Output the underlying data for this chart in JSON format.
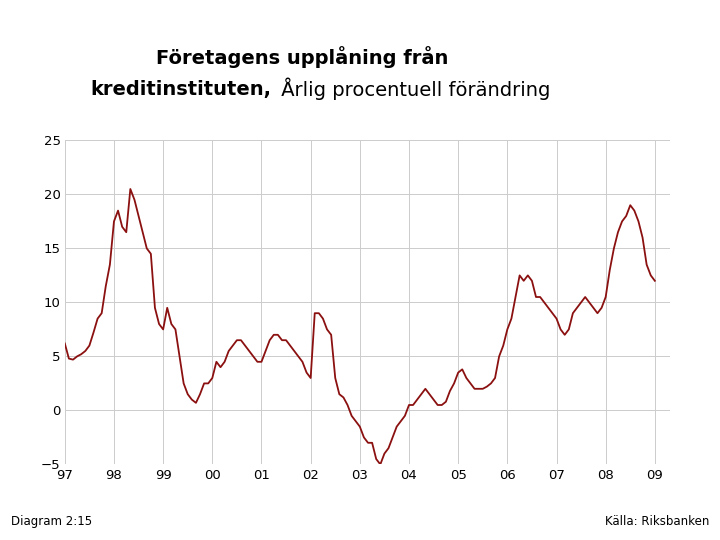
{
  "title_line1_bold": "Företagens upplåning från",
  "title_line2_bold": "kreditinstituten,",
  "title_line2_normal": " Årlig procentuell förändring",
  "diagram_label": "Diagram 2:15",
  "source_label": "Källa: Riksbanken",
  "line_color": "#8B1010",
  "background_color": "#FFFFFF",
  "grid_color": "#CCCCCC",
  "footer_bar_color": "#1A4F8A",
  "ylim": [
    -5,
    25
  ],
  "yticks": [
    -5,
    0,
    5,
    10,
    15,
    20,
    25
  ],
  "xtick_labels": [
    "97",
    "98",
    "99",
    "00",
    "01",
    "02",
    "03",
    "04",
    "05",
    "06",
    "07",
    "08",
    "09"
  ],
  "x_values": [
    1997.0,
    1997.083,
    1997.167,
    1997.25,
    1997.333,
    1997.417,
    1997.5,
    1997.583,
    1997.667,
    1997.75,
    1997.833,
    1997.917,
    1998.0,
    1998.083,
    1998.167,
    1998.25,
    1998.333,
    1998.417,
    1998.5,
    1998.583,
    1998.667,
    1998.75,
    1998.833,
    1998.917,
    1999.0,
    1999.083,
    1999.167,
    1999.25,
    1999.333,
    1999.417,
    1999.5,
    1999.583,
    1999.667,
    1999.75,
    1999.833,
    1999.917,
    2000.0,
    2000.083,
    2000.167,
    2000.25,
    2000.333,
    2000.417,
    2000.5,
    2000.583,
    2000.667,
    2000.75,
    2000.833,
    2000.917,
    2001.0,
    2001.083,
    2001.167,
    2001.25,
    2001.333,
    2001.417,
    2001.5,
    2001.583,
    2001.667,
    2001.75,
    2001.833,
    2001.917,
    2002.0,
    2002.083,
    2002.167,
    2002.25,
    2002.333,
    2002.417,
    2002.5,
    2002.583,
    2002.667,
    2002.75,
    2002.833,
    2002.917,
    2003.0,
    2003.083,
    2003.167,
    2003.25,
    2003.333,
    2003.417,
    2003.5,
    2003.583,
    2003.667,
    2003.75,
    2003.833,
    2003.917,
    2004.0,
    2004.083,
    2004.167,
    2004.25,
    2004.333,
    2004.417,
    2004.5,
    2004.583,
    2004.667,
    2004.75,
    2004.833,
    2004.917,
    2005.0,
    2005.083,
    2005.167,
    2005.25,
    2005.333,
    2005.417,
    2005.5,
    2005.583,
    2005.667,
    2005.75,
    2005.833,
    2005.917,
    2006.0,
    2006.083,
    2006.167,
    2006.25,
    2006.333,
    2006.417,
    2006.5,
    2006.583,
    2006.667,
    2006.75,
    2006.833,
    2006.917,
    2007.0,
    2007.083,
    2007.167,
    2007.25,
    2007.333,
    2007.417,
    2007.5,
    2007.583,
    2007.667,
    2007.75,
    2007.833,
    2007.917,
    2008.0,
    2008.083,
    2008.167,
    2008.25,
    2008.333,
    2008.417,
    2008.5,
    2008.583,
    2008.667,
    2008.75,
    2008.833,
    2008.917,
    2009.0
  ],
  "y_values": [
    6.2,
    4.8,
    4.7,
    5.0,
    5.2,
    5.5,
    6.0,
    7.2,
    8.5,
    9.0,
    11.5,
    13.5,
    17.5,
    18.5,
    17.0,
    16.5,
    20.5,
    19.5,
    18.0,
    16.5,
    15.0,
    14.5,
    9.5,
    8.0,
    7.5,
    9.5,
    8.0,
    7.5,
    5.0,
    2.5,
    1.5,
    1.0,
    0.7,
    1.5,
    2.5,
    2.5,
    3.0,
    4.5,
    4.0,
    4.5,
    5.5,
    6.0,
    6.5,
    6.5,
    6.0,
    5.5,
    5.0,
    4.5,
    4.5,
    5.5,
    6.5,
    7.0,
    7.0,
    6.5,
    6.5,
    6.0,
    5.5,
    5.0,
    4.5,
    3.5,
    3.0,
    9.0,
    9.0,
    8.5,
    7.5,
    7.0,
    3.0,
    1.5,
    1.2,
    0.5,
    -0.5,
    -1.0,
    -1.5,
    -2.5,
    -3.0,
    -3.0,
    -4.5,
    -5.0,
    -4.0,
    -3.5,
    -2.5,
    -1.5,
    -1.0,
    -0.5,
    0.5,
    0.5,
    1.0,
    1.5,
    2.0,
    1.5,
    1.0,
    0.5,
    0.5,
    0.8,
    1.8,
    2.5,
    3.5,
    3.8,
    3.0,
    2.5,
    2.0,
    2.0,
    2.0,
    2.2,
    2.5,
    3.0,
    5.0,
    6.0,
    7.5,
    8.5,
    10.5,
    12.5,
    12.0,
    12.5,
    12.0,
    10.5,
    10.5,
    10.0,
    9.5,
    9.0,
    8.5,
    7.5,
    7.0,
    7.5,
    9.0,
    9.5,
    10.0,
    10.5,
    10.0,
    9.5,
    9.0,
    9.5,
    10.5,
    13.0,
    15.0,
    16.5,
    17.5,
    18.0,
    19.0,
    18.5,
    17.5,
    16.0,
    13.5,
    12.5,
    12.0
  ]
}
